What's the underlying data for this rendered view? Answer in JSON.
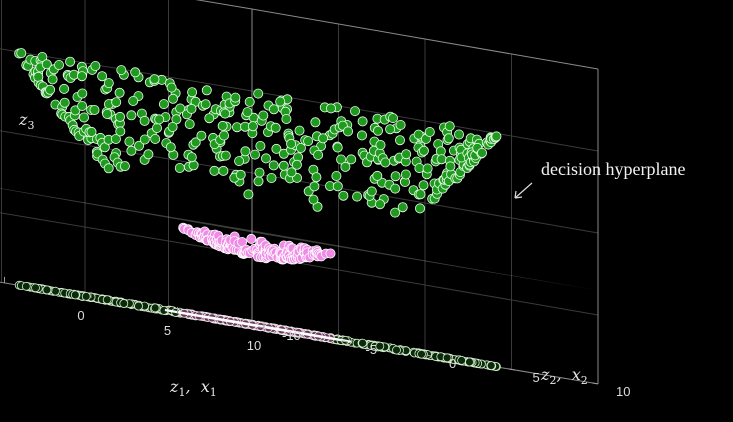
{
  "chart_data": {
    "type": "scatter",
    "subtype": "3d-scatter",
    "title": "",
    "xlabel": "z1, x1",
    "ylabel": "z2, x2",
    "zlabel": "z3",
    "xlim": [
      -10,
      10
    ],
    "ylim": [
      -10,
      10
    ],
    "zlim": [
      -10,
      120
    ],
    "x_ticks": [
      "-10",
      "-5",
      "0",
      "5",
      "10"
    ],
    "y_ticks": [
      "-10",
      "-5",
      "0",
      "5",
      "10"
    ],
    "z_ticks": [
      "0",
      "50",
      "100"
    ],
    "x_tick_values": [
      -10,
      -5,
      0,
      5,
      10
    ],
    "y_tick_values": [
      -10,
      -5,
      0,
      5,
      10
    ],
    "z_tick_values": [
      0,
      50,
      100
    ],
    "grid": true,
    "decision_plane_z3": 15,
    "decision_circle_radius": 3.87,
    "outer_class": {
      "r_min": 6,
      "r_max": 10,
      "count": 420,
      "lifted_color": "#1f9a1f",
      "projected_color": "#d8f0d0"
    },
    "inner_class": {
      "r_min": 0,
      "r_max": 3.2,
      "count": 170,
      "lifted_color": "#ef8ae6",
      "projected_color": "#6a3a5a"
    },
    "annotation": "decision hyperplane",
    "colors": {
      "background": "#000000",
      "plane": "#bdbdbd",
      "circle": "#ffffff"
    }
  },
  "axis_labels": {
    "x_sub_a": "1",
    "x_sub_b": "1",
    "y_sub_a": "2",
    "y_sub_b": "2",
    "z_sub": "3"
  }
}
